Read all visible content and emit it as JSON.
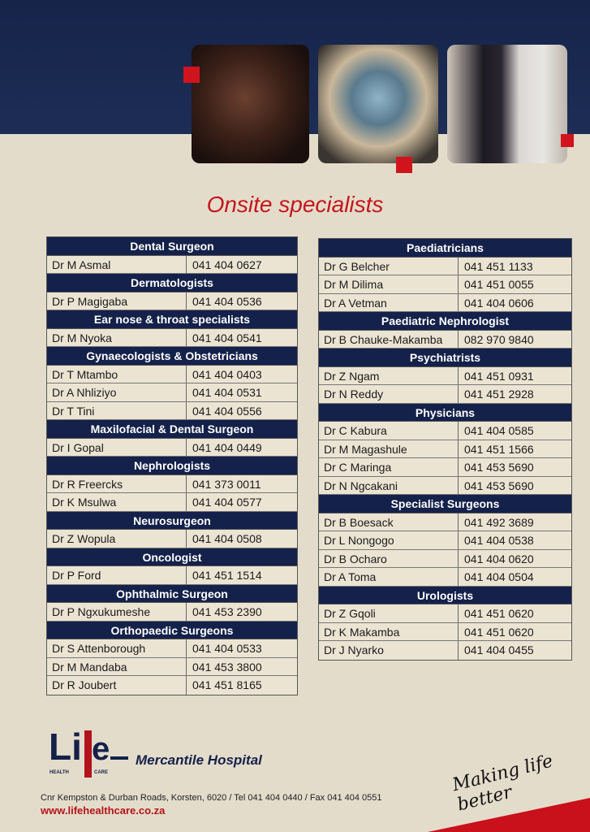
{
  "title": "Onsite specialists",
  "colors": {
    "navy": "#14214a",
    "red": "#c4161c",
    "paper": "#e4dccb"
  },
  "tables": {
    "left": [
      {
        "title": "Dental Surgeon",
        "rows": [
          [
            "Dr M Asmal",
            "041 404 0627"
          ]
        ]
      },
      {
        "title": "Dermatologists",
        "rows": [
          [
            "Dr P Magigaba",
            "041 404 0536"
          ]
        ]
      },
      {
        "title": "Ear nose & throat specialists",
        "rows": [
          [
            "Dr M Nyoka",
            "041 404 0541"
          ]
        ]
      },
      {
        "title": "Gynaecologists & Obstetricians",
        "rows": [
          [
            "Dr T Mtambo",
            "041 404 0403"
          ],
          [
            "Dr A Nhliziyo",
            "041 404 0531"
          ],
          [
            "Dr T Tini",
            "041 404 0556"
          ]
        ]
      },
      {
        "title": "Maxilofacial & Dental Surgeon",
        "rows": [
          [
            "Dr I Gopal",
            "041 404 0449"
          ]
        ]
      },
      {
        "title": "Nephrologists",
        "rows": [
          [
            "Dr R Freercks",
            "041 373 0011"
          ],
          [
            "Dr K Msulwa",
            "041 404 0577"
          ]
        ]
      },
      {
        "title": "Neurosurgeon",
        "rows": [
          [
            "Dr Z Wopula",
            "041 404 0508"
          ]
        ]
      },
      {
        "title": "Oncologist",
        "rows": [
          [
            "Dr P Ford",
            "041 451 1514"
          ]
        ]
      },
      {
        "title": "Ophthalmic Surgeon",
        "rows": [
          [
            "Dr P Ngxukumeshe",
            "041 453 2390"
          ]
        ]
      },
      {
        "title": "Orthopaedic Surgeons",
        "rows": [
          [
            "Dr S Attenborough",
            "041 404 0533"
          ],
          [
            "Dr M Mandaba",
            "041 453 3800"
          ],
          [
            "Dr R Joubert",
            "041 451 8165"
          ]
        ]
      }
    ],
    "right": [
      {
        "title": "Paediatricians",
        "rows": [
          [
            "Dr G Belcher",
            "041 451 1133"
          ],
          [
            "Dr M Dilima",
            "041 451 0055"
          ],
          [
            "Dr A Vetman",
            "041 404 0606"
          ]
        ]
      },
      {
        "title": "Paediatric Nephrologist",
        "rows": [
          [
            "Dr B Chauke-Makamba",
            "082 970 9840"
          ]
        ]
      },
      {
        "title": "Psychiatrists",
        "rows": [
          [
            "Dr Z Ngam",
            "041 451 0931"
          ],
          [
            "Dr N Reddy",
            "041 451 2928"
          ]
        ]
      },
      {
        "title": "Physicians",
        "rows": [
          [
            "Dr C Kabura",
            "041 404 0585"
          ],
          [
            "Dr M Magashule",
            "041 451 1566"
          ],
          [
            "Dr C Maringa",
            "041 453 5690"
          ],
          [
            "Dr N Ngcakani",
            "041 453 5690"
          ]
        ]
      },
      {
        "title": "Specialist Surgeons",
        "rows": [
          [
            "Dr B Boesack",
            "041 492 3689"
          ],
          [
            "Dr L Nongogo",
            "041 404 0538"
          ],
          [
            "Dr B Ocharo",
            "041 404 0620"
          ],
          [
            "Dr A Toma",
            "041 404 0504"
          ]
        ]
      },
      {
        "title": "Urologists",
        "rows": [
          [
            "Dr Z Gqoli",
            "041 451 0620"
          ],
          [
            "Dr K Makamba",
            "041 451 0620"
          ],
          [
            "Dr J Nyarko",
            "041 404 0455"
          ]
        ]
      }
    ]
  },
  "footer": {
    "logo_text": "Life HEALTH CARE",
    "hospital": "Mercantile Hospital",
    "address": "Cnr Kempston & Durban Roads, Korsten, 6020 / Tel 041 404 0440 / Fax 041 404 0551",
    "website": "www.lifehealthcare.co.za",
    "slogan": "Making life better"
  }
}
